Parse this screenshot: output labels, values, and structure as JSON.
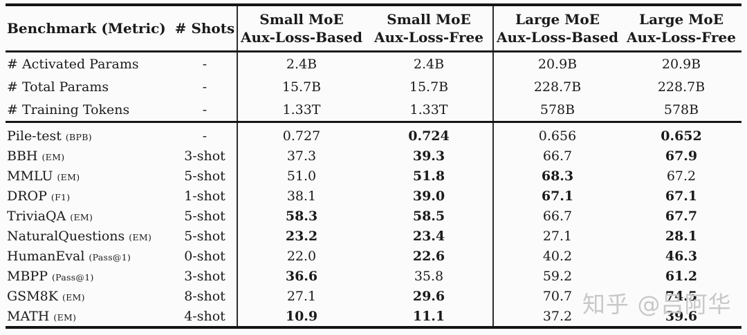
{
  "table": {
    "header": {
      "benchmark": "Benchmark (Metric)",
      "shots": "# Shots",
      "groups": [
        {
          "line1": "Small MoE",
          "line2": "Aux-Loss-Based"
        },
        {
          "line1": "Small MoE",
          "line2": "Aux-Loss-Free"
        },
        {
          "line1": "Large MoE",
          "line2": "Aux-Loss-Based"
        },
        {
          "line1": "Large MoE",
          "line2": "Aux-Loss-Free"
        }
      ]
    },
    "info_rows": [
      {
        "name": "# Activated Params",
        "metric": "",
        "shots": "-",
        "values": [
          "2.4B",
          "2.4B",
          "20.9B",
          "20.9B"
        ],
        "bold": [
          false,
          false,
          false,
          false
        ]
      },
      {
        "name": "# Total Params",
        "metric": "",
        "shots": "-",
        "values": [
          "15.7B",
          "15.7B",
          "228.7B",
          "228.7B"
        ],
        "bold": [
          false,
          false,
          false,
          false
        ]
      },
      {
        "name": "# Training Tokens",
        "metric": "",
        "shots": "-",
        "values": [
          "1.33T",
          "1.33T",
          "578B",
          "578B"
        ],
        "bold": [
          false,
          false,
          false,
          false
        ]
      }
    ],
    "benchmark_rows": [
      {
        "name": "Pile-test",
        "metric": "(BPB)",
        "shots": "-",
        "values": [
          "0.727",
          "0.724",
          "0.656",
          "0.652"
        ],
        "bold": [
          false,
          true,
          false,
          true
        ]
      },
      {
        "name": "BBH",
        "metric": "(EM)",
        "shots": "3-shot",
        "values": [
          "37.3",
          "39.3",
          "66.7",
          "67.9"
        ],
        "bold": [
          false,
          true,
          false,
          true
        ]
      },
      {
        "name": "MMLU",
        "metric": "(EM)",
        "shots": "5-shot",
        "values": [
          "51.0",
          "51.8",
          "68.3",
          "67.2"
        ],
        "bold": [
          false,
          true,
          true,
          false
        ]
      },
      {
        "name": "DROP",
        "metric": "(F1)",
        "shots": "1-shot",
        "values": [
          "38.1",
          "39.0",
          "67.1",
          "67.1"
        ],
        "bold": [
          false,
          true,
          true,
          true
        ]
      },
      {
        "name": "TriviaQA",
        "metric": "(EM)",
        "shots": "5-shot",
        "values": [
          "58.3",
          "58.5",
          "66.7",
          "67.7"
        ],
        "bold": [
          true,
          true,
          false,
          true
        ]
      },
      {
        "name": "NaturalQuestions",
        "metric": "(EM)",
        "shots": "5-shot",
        "values": [
          "23.2",
          "23.4",
          "27.1",
          "28.1"
        ],
        "bold": [
          true,
          true,
          false,
          true
        ]
      },
      {
        "name": "HumanEval",
        "metric": "(Pass@1)",
        "shots": "0-shot",
        "values": [
          "22.0",
          "22.6",
          "40.2",
          "46.3"
        ],
        "bold": [
          false,
          true,
          false,
          true
        ]
      },
      {
        "name": "MBPP",
        "metric": "(Pass@1)",
        "shots": "3-shot",
        "values": [
          "36.6",
          "35.8",
          "59.2",
          "61.2"
        ],
        "bold": [
          true,
          false,
          false,
          true
        ]
      },
      {
        "name": "GSM8K",
        "metric": "(EM)",
        "shots": "8-shot",
        "values": [
          "27.1",
          "29.6",
          "70.7",
          "74.5"
        ],
        "bold": [
          false,
          true,
          false,
          true
        ]
      },
      {
        "name": "MATH",
        "metric": "(EM)",
        "shots": "4-shot",
        "values": [
          "10.9",
          "11.1",
          "37.2",
          "39.6"
        ],
        "bold": [
          true,
          true,
          false,
          true
        ]
      }
    ]
  },
  "watermark": {
    "text": "知乎 @吕阿华",
    "color": "#c8c8c8"
  }
}
